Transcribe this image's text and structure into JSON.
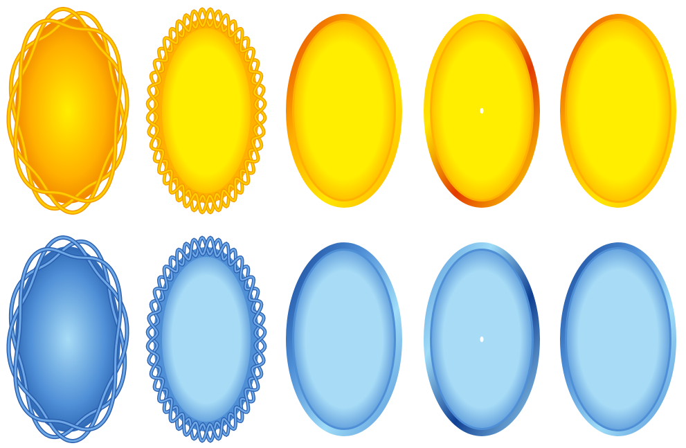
{
  "rows": [
    {
      "theme": "gold",
      "colors": {
        "outer": "#e86a00",
        "mid": "#ffb000",
        "inner": "#ffee00",
        "rim_dark": "#e23a00",
        "rim_light": "#ffe600",
        "wire": "#ffcc00",
        "wire_dark": "#f29a00"
      },
      "items": [
        {
          "style": "twisted-wire-frame"
        },
        {
          "style": "wavy-wire-frame"
        },
        {
          "style": "plain-bevel-frame"
        },
        {
          "style": "bevel-frame-with-highlight"
        },
        {
          "style": "thin-bevel-frame"
        }
      ]
    },
    {
      "theme": "blue",
      "colors": {
        "outer": "#1a4fa0",
        "mid": "#4f8fd6",
        "inner": "#a8dcf6",
        "rim_dark": "#0f3f92",
        "rim_light": "#9fdcf8",
        "wire": "#6fa8e6",
        "wire_dark": "#2a5fae"
      },
      "items": [
        {
          "style": "twisted-wire-frame"
        },
        {
          "style": "wavy-wire-frame"
        },
        {
          "style": "plain-bevel-frame"
        },
        {
          "style": "bevel-frame-with-highlight"
        },
        {
          "style": "thin-bevel-frame"
        }
      ]
    }
  ]
}
